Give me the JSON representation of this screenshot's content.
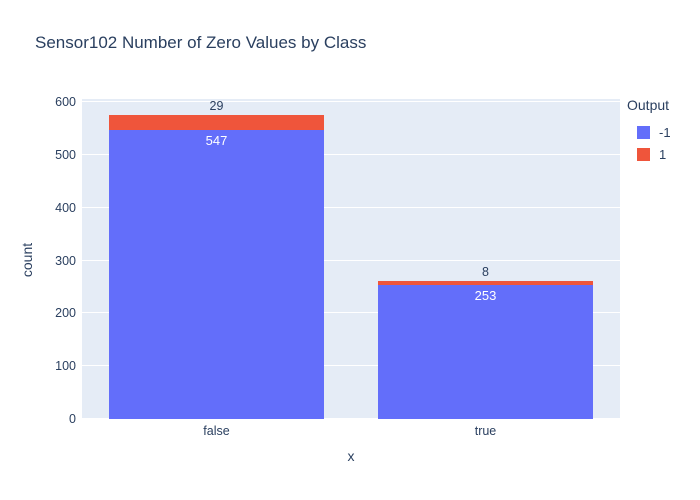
{
  "title": "Sensor102 Number of Zero Values by Class",
  "chart_data": {
    "type": "bar",
    "mode": "stacked",
    "title": "Sensor102 Number of Zero Values by Class",
    "xlabel": "x",
    "ylabel": "count",
    "categories": [
      "false",
      "true"
    ],
    "series": [
      {
        "name": "-1",
        "color": "#636efa",
        "values": [
          547,
          253
        ]
      },
      {
        "name": "1",
        "color": "#ef553b",
        "values": [
          29,
          8
        ]
      }
    ],
    "ylim": [
      0,
      600
    ],
    "yticks": [
      0,
      100,
      200,
      300,
      400,
      500,
      600
    ],
    "grid": true,
    "legend_title": "Output",
    "legend_position": "right",
    "plot_bgcolor": "#e5ecf6",
    "grid_color": "#ffffff",
    "text_color": "#2a3f5f",
    "bar_label_inside_color": "#ffffff"
  }
}
